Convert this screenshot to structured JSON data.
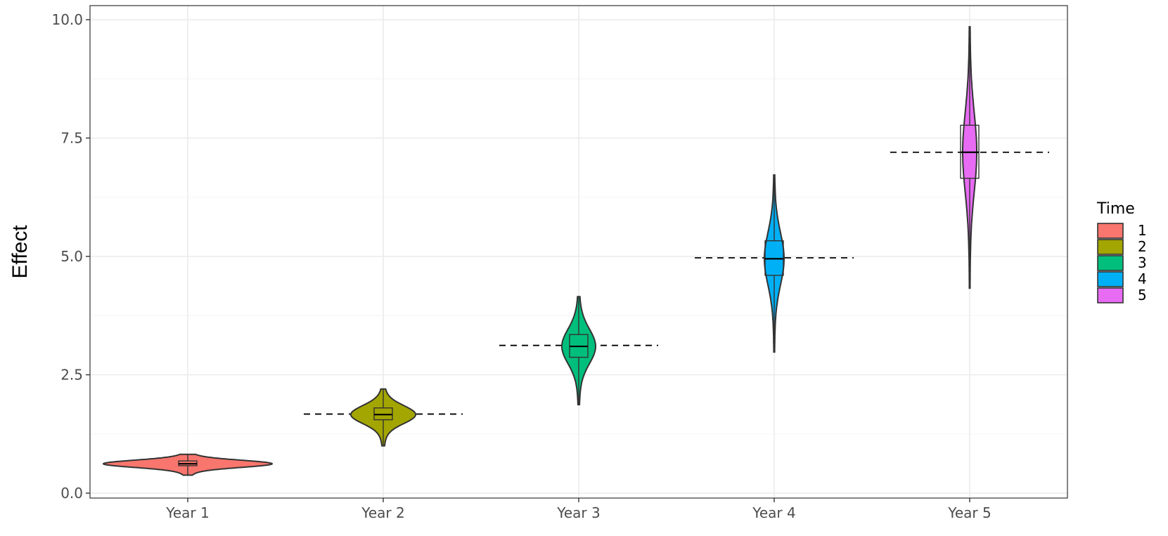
{
  "chart_data": {
    "type": "violin",
    "ylabel": "Effect",
    "xlabel": "",
    "ylim": [
      0,
      10
    ],
    "y_ticks": [
      "0.0",
      "2.5",
      "5.0",
      "7.5",
      "10.0"
    ],
    "y_tick_values": [
      0,
      2.5,
      5,
      7.5,
      10
    ],
    "categories": [
      "Year 1",
      "Year 2",
      "Year 3",
      "Year 4",
      "Year 5"
    ],
    "legend": {
      "title": "Time",
      "position": "right",
      "entries": [
        "1",
        "2",
        "3",
        "4",
        "5"
      ]
    },
    "series": [
      {
        "category": "Year 1",
        "fill": "#F8766D",
        "min": 0.38,
        "q1": 0.58,
        "median": 0.62,
        "q3": 0.68,
        "max": 0.82,
        "reference_line": 0.63
      },
      {
        "category": "Year 2",
        "fill": "#A3A500",
        "min": 1.0,
        "q1": 1.55,
        "median": 1.66,
        "q3": 1.8,
        "max": 2.2,
        "reference_line": 1.67
      },
      {
        "category": "Year 3",
        "fill": "#00BF7D",
        "min": 1.87,
        "q1": 2.87,
        "median": 3.1,
        "q3": 3.35,
        "max": 4.15,
        "reference_line": 3.12
      },
      {
        "category": "Year 4",
        "fill": "#00B0F6",
        "min": 2.98,
        "q1": 4.6,
        "median": 4.95,
        "q3": 5.33,
        "max": 6.72,
        "reference_line": 4.97
      },
      {
        "category": "Year 5",
        "fill": "#E76BF3",
        "min": 4.33,
        "q1": 6.65,
        "median": 7.2,
        "q3": 7.77,
        "max": 9.85,
        "reference_line": 7.2
      }
    ],
    "grid": true,
    "colors": {
      "panel_border": "#333333",
      "grid_major": "#EBEBEB",
      "grid_minor": "#F5F5F5",
      "outline": "#333333"
    }
  }
}
